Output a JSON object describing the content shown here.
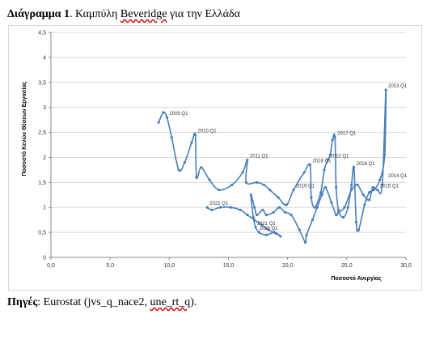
{
  "header": {
    "title_bold": "Διάγραμμα 1",
    "title_rest_prefix": ". Καμπύλη ",
    "title_underlined": "Beveridge",
    "title_rest_suffix": " για την Ελλάδα"
  },
  "footer": {
    "source_bold": "Πηγές",
    "source_prefix": ": Eurostat (jvs_q_nace2, ",
    "source_underlined": "une_rt_q",
    "source_suffix": ")."
  },
  "colors": {
    "line": "#4a7ebb",
    "grid": "#d9d9d9",
    "axis": "#888888"
  },
  "chart_data": {
    "type": "line",
    "title": "",
    "xlabel": "Ποσοστό Ανεργίας",
    "ylabel": "Ποσοστό Κενών Θέσεων Εργασίας",
    "xlim": [
      0,
      30
    ],
    "ylim": [
      0,
      4.5
    ],
    "x_ticks": [
      0,
      5,
      10,
      15,
      20,
      25,
      30
    ],
    "x_tick_labels": [
      "0,0",
      "5,0",
      "10,0",
      "15,0",
      "20,0",
      "25,0",
      "30,0"
    ],
    "y_ticks": [
      0,
      0.5,
      1,
      1.5,
      2,
      2.5,
      3,
      3.5,
      4,
      4.5
    ],
    "y_tick_labels": [
      "0",
      "0,5",
      "1",
      "1,5",
      "2",
      "2,5",
      "3",
      "3,5",
      "4",
      "4,5"
    ],
    "grid": true,
    "series": [
      {
        "values_xy": [
          [
            9.1,
            2.7
          ],
          [
            9.5,
            2.9
          ],
          [
            9.8,
            2.8
          ],
          [
            10.2,
            2.4
          ],
          [
            10.8,
            1.75
          ],
          [
            11.3,
            1.9
          ],
          [
            11.9,
            2.3
          ],
          [
            12.2,
            2.45
          ],
          [
            12.3,
            1.6
          ],
          [
            12.7,
            1.8
          ],
          [
            13.4,
            1.55
          ],
          [
            14.2,
            1.35
          ],
          [
            15.3,
            1.45
          ],
          [
            16.2,
            1.7
          ],
          [
            16.6,
            1.95
          ],
          [
            16.5,
            1.5
          ],
          [
            17.4,
            1.5
          ],
          [
            18.0,
            1.45
          ],
          [
            18.5,
            1.35
          ],
          [
            19.2,
            1.2
          ],
          [
            19.9,
            1.05
          ],
          [
            20.5,
            1.35
          ],
          [
            21.4,
            1.7
          ],
          [
            21.9,
            1.85
          ],
          [
            22.0,
            1.2
          ],
          [
            22.3,
            1.0
          ],
          [
            22.8,
            1.3
          ],
          [
            23.1,
            1.75
          ],
          [
            23.4,
            1.95
          ],
          [
            23.6,
            2.05
          ],
          [
            23.8,
            2.35
          ],
          [
            24.0,
            2.4
          ],
          [
            24.1,
            1.4
          ],
          [
            24.3,
            0.95
          ],
          [
            24.7,
            0.8
          ],
          [
            25.1,
            1.0
          ],
          [
            25.4,
            1.45
          ],
          [
            25.6,
            1.8
          ],
          [
            25.8,
            0.7
          ],
          [
            26.0,
            0.55
          ],
          [
            26.5,
            1.05
          ],
          [
            26.9,
            1.3
          ],
          [
            27.3,
            1.35
          ],
          [
            27.8,
            1.55
          ],
          [
            28.2,
            2.05
          ],
          [
            28.3,
            3.35
          ],
          [
            28.0,
            1.45
          ],
          [
            27.6,
            1.35
          ],
          [
            27.2,
            1.4
          ],
          [
            26.9,
            1.15
          ],
          [
            26.4,
            1.25
          ],
          [
            25.9,
            1.45
          ],
          [
            25.4,
            1.35
          ],
          [
            24.8,
            1.0
          ],
          [
            24.3,
            0.9
          ],
          [
            24.1,
            0.85
          ],
          [
            23.7,
            1.1
          ],
          [
            23.2,
            1.4
          ],
          [
            22.9,
            1.25
          ],
          [
            22.5,
            1.0
          ],
          [
            22.1,
            0.75
          ],
          [
            21.6,
            0.45
          ],
          [
            21.5,
            0.3
          ],
          [
            21.0,
            0.55
          ],
          [
            20.3,
            0.85
          ],
          [
            19.8,
            0.9
          ],
          [
            19.3,
            1.0
          ],
          [
            18.8,
            0.9
          ],
          [
            18.2,
            0.85
          ],
          [
            17.9,
            0.95
          ],
          [
            17.4,
            0.85
          ],
          [
            17.2,
            1.0
          ],
          [
            16.9,
            1.25
          ],
          [
            17.1,
            0.8
          ],
          [
            17.3,
            0.6
          ],
          [
            17.6,
            0.5
          ],
          [
            18.2,
            0.45
          ],
          [
            18.9,
            0.5
          ],
          [
            19.4,
            0.42
          ],
          [
            19.0,
            0.48
          ],
          [
            18.4,
            0.55
          ],
          [
            17.8,
            0.65
          ],
          [
            17.2,
            0.75
          ],
          [
            16.6,
            0.85
          ],
          [
            16.0,
            0.95
          ],
          [
            15.2,
            1.0
          ],
          [
            14.3,
            1.0
          ],
          [
            13.6,
            0.95
          ],
          [
            13.2,
            1.0
          ]
        ]
      }
    ],
    "annotations": [
      {
        "text": "2009 Q1",
        "x": 9.8,
        "y": 2.8
      },
      {
        "text": "2010 Q1",
        "x": 12.2,
        "y": 2.45
      },
      {
        "text": "2011 Q1",
        "x": 16.6,
        "y": 1.95
      },
      {
        "text": "2012 Q1",
        "x": 23.4,
        "y": 1.95
      },
      {
        "text": "2013 Q1",
        "x": 28.3,
        "y": 3.35
      },
      {
        "text": "2014 Q1",
        "x": 28.3,
        "y": 1.55
      },
      {
        "text": "2015 Q1",
        "x": 27.6,
        "y": 1.35
      },
      {
        "text": "2016 Q1",
        "x": 25.6,
        "y": 1.8
      },
      {
        "text": "2017 Q1",
        "x": 24.0,
        "y": 2.4
      },
      {
        "text": "2018 Q1",
        "x": 21.9,
        "y": 1.85
      },
      {
        "text": "2019 Q1",
        "x": 20.5,
        "y": 1.35
      },
      {
        "text": "2020 Q1",
        "x": 17.4,
        "y": 0.5
      },
      {
        "text": "2021 Q1",
        "x": 17.2,
        "y": 0.6
      },
      {
        "text": "2022 Q1",
        "x": 13.2,
        "y": 1.0
      }
    ]
  }
}
